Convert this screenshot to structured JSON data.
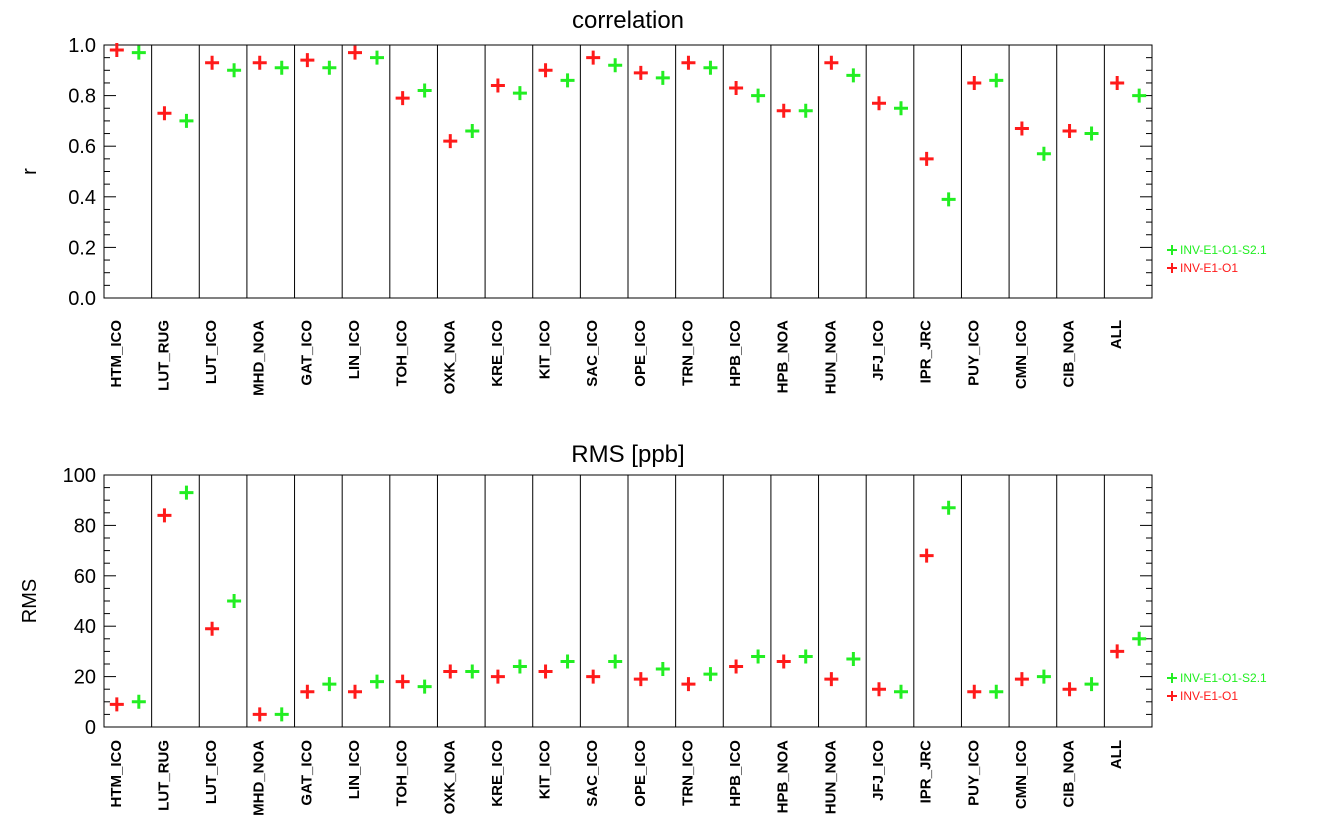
{
  "colors": {
    "inv_e1_o1": "#ff1a1a",
    "inv_e1_o1_s21": "#22ee22"
  },
  "chart_data": [
    {
      "type": "scatter",
      "title": "correlation",
      "xlabel": "",
      "ylabel": "r",
      "ylim": [
        0.0,
        1.0
      ],
      "yticks": [
        "0.0",
        "0.2",
        "0.4",
        "0.6",
        "0.8",
        "1.0"
      ],
      "grid": "vertical separators between stations",
      "legend": "right",
      "categories": [
        "HTM_ICO",
        "LUT_RUG",
        "LUT_ICO",
        "MHD_NOA",
        "GAT_ICO",
        "LIN_ICO",
        "TOH_ICO",
        "OXK_NOA",
        "KRE_ICO",
        "KIT_ICO",
        "SAC_ICO",
        "OPE_ICO",
        "TRN_ICO",
        "HPB_ICO",
        "HPB_NOA",
        "HUN_NOA",
        "JFJ_ICO",
        "IPR_JRC",
        "PUY_ICO",
        "CMN_ICO",
        "CIB_NOA",
        "ALL"
      ],
      "series": [
        {
          "name": "INV-E1-O1-S2.1",
          "color": "#22ee22",
          "values": [
            0.97,
            0.7,
            0.9,
            0.91,
            0.91,
            0.95,
            0.82,
            0.66,
            0.81,
            0.86,
            0.92,
            0.87,
            0.91,
            0.8,
            0.74,
            0.88,
            0.75,
            0.39,
            0.86,
            0.57,
            0.65,
            0.8
          ]
        },
        {
          "name": "INV-E1-O1",
          "color": "#ff1a1a",
          "values": [
            0.98,
            0.73,
            0.93,
            0.93,
            0.94,
            0.97,
            0.79,
            0.62,
            0.84,
            0.9,
            0.95,
            0.89,
            0.93,
            0.83,
            0.74,
            0.93,
            0.77,
            0.55,
            0.85,
            0.67,
            0.66,
            0.85
          ]
        }
      ]
    },
    {
      "type": "scatter",
      "title": "RMS [ppb]",
      "xlabel": "",
      "ylabel": "RMS",
      "ylim": [
        0,
        100
      ],
      "yticks": [
        "0",
        "20",
        "40",
        "60",
        "80",
        "100"
      ],
      "grid": "vertical separators between stations",
      "legend": "right",
      "categories": [
        "HTM_ICO",
        "LUT_RUG",
        "LUT_ICO",
        "MHD_NOA",
        "GAT_ICO",
        "LIN_ICO",
        "TOH_ICO",
        "OXK_NOA",
        "KRE_ICO",
        "KIT_ICO",
        "SAC_ICO",
        "OPE_ICO",
        "TRN_ICO",
        "HPB_ICO",
        "HPB_NOA",
        "HUN_NOA",
        "JFJ_ICO",
        "IPR_JRC",
        "PUY_ICO",
        "CMN_ICO",
        "CIB_NOA",
        "ALL"
      ],
      "series": [
        {
          "name": "INV-E1-O1-S2.1",
          "color": "#22ee22",
          "values": [
            10,
            93,
            50,
            5,
            17,
            18,
            16,
            22,
            24,
            26,
            26,
            23,
            21,
            28,
            28,
            27,
            14,
            87,
            14,
            20,
            17,
            35
          ]
        },
        {
          "name": "INV-E1-O1",
          "color": "#ff1a1a",
          "values": [
            9,
            84,
            39,
            5,
            14,
            14,
            18,
            22,
            20,
            22,
            20,
            19,
            17,
            24,
            26,
            19,
            15,
            68,
            14,
            19,
            15,
            30
          ]
        }
      ]
    }
  ]
}
